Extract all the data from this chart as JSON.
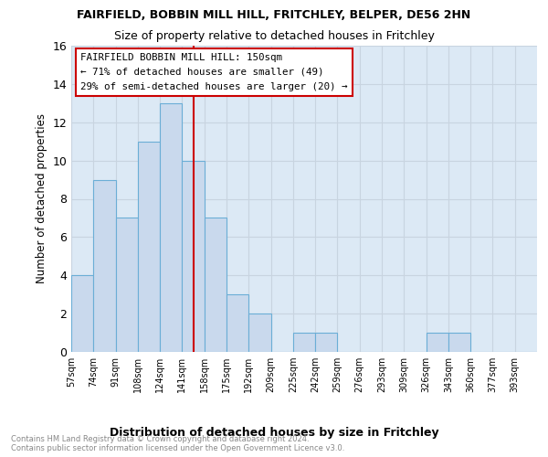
{
  "title1": "FAIRFIELD, BOBBIN MILL HILL, FRITCHLEY, BELPER, DE56 2HN",
  "title2": "Size of property relative to detached houses in Fritchley",
  "xlabel": "Distribution of detached houses by size in Fritchley",
  "ylabel": "Number of detached properties",
  "footnote": "Contains HM Land Registry data © Crown copyright and database right 2024.\nContains public sector information licensed under the Open Government Licence v3.0.",
  "bin_labels": [
    "57sqm",
    "74sqm",
    "91sqm",
    "108sqm",
    "124sqm",
    "141sqm",
    "158sqm",
    "175sqm",
    "192sqm",
    "209sqm",
    "225sqm",
    "242sqm",
    "259sqm",
    "276sqm",
    "293sqm",
    "309sqm",
    "326sqm",
    "343sqm",
    "360sqm",
    "377sqm",
    "393sqm"
  ],
  "bar_values": [
    4,
    9,
    7,
    11,
    13,
    10,
    7,
    3,
    2,
    0,
    1,
    1,
    0,
    0,
    0,
    0,
    1,
    1,
    0,
    0,
    0
  ],
  "bar_color": "#c9d9ed",
  "bar_edge_color": "#6baed6",
  "annotation_box_color": "#ffffff",
  "annotation_box_edge": "#cc0000",
  "vline_color": "#cc0000",
  "ylim": [
    0,
    16
  ],
  "yticks": [
    0,
    2,
    4,
    6,
    8,
    10,
    12,
    14,
    16
  ],
  "grid_color": "#c8d4e0",
  "bg_color": "#dce9f5"
}
